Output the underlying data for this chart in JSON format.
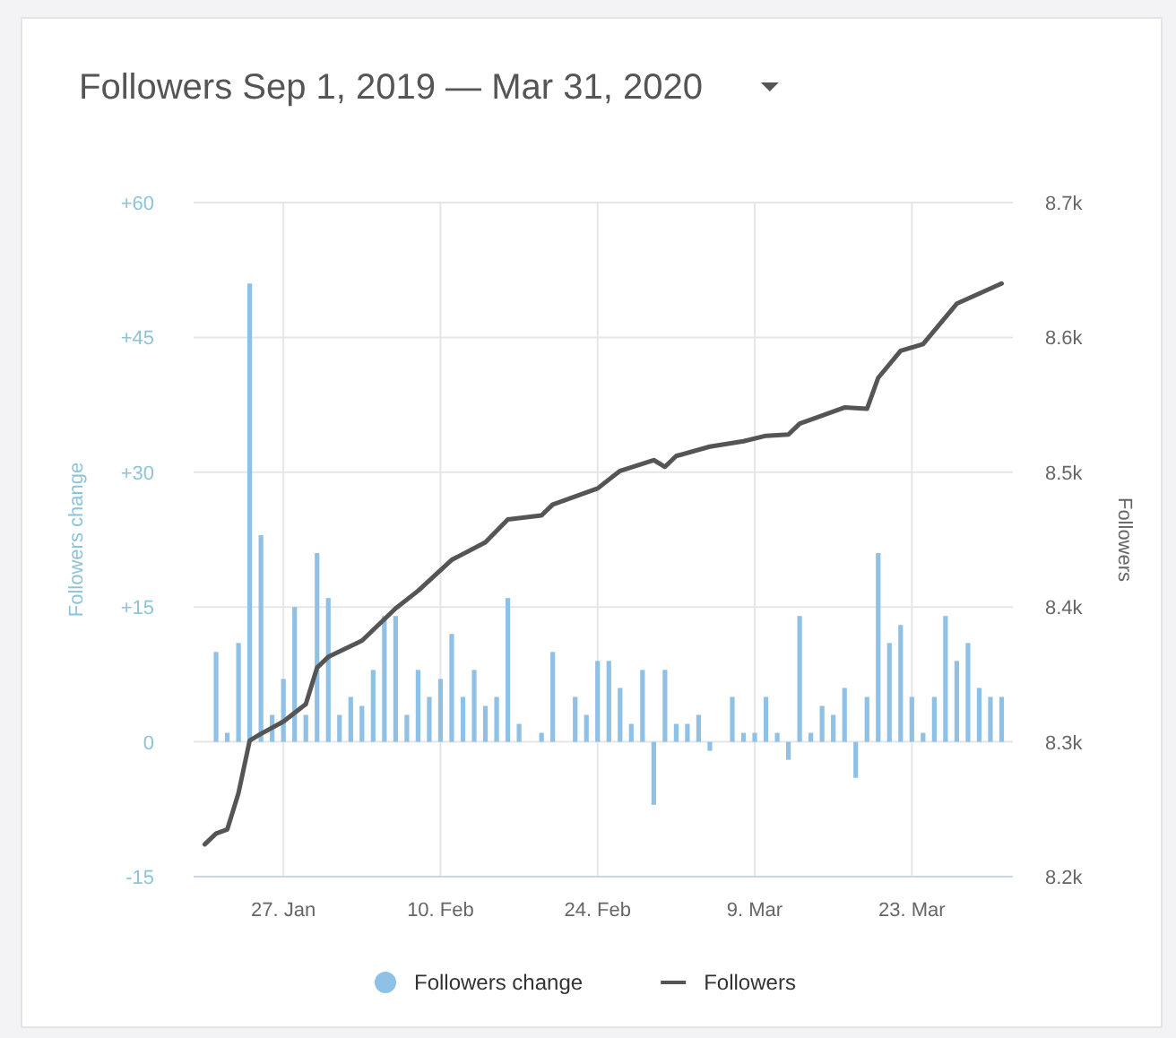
{
  "chart_data": {
    "type": "bar",
    "title": "Followers Sep 1, 2019 — Mar 31, 2020",
    "ylabel": "Followers change",
    "y2label": "Followers",
    "xlim": [
      "2020-01-19",
      "2020-04-01"
    ],
    "xticks": [
      {
        "value": "2020-01-27",
        "label": "27. Jan"
      },
      {
        "value": "2020-02-10",
        "label": "10. Feb"
      },
      {
        "value": "2020-02-24",
        "label": "24. Feb"
      },
      {
        "value": "2020-03-09",
        "label": "9. Mar"
      },
      {
        "value": "2020-03-23",
        "label": "23. Mar"
      }
    ],
    "ylim": [
      -15,
      60
    ],
    "yticks": [
      {
        "value": -15,
        "label": "-15"
      },
      0,
      {
        "value": 15,
        "label": "+15"
      },
      {
        "value": 30,
        "label": "+30"
      },
      {
        "value": 45,
        "label": "+45"
      },
      {
        "value": 60,
        "label": "+60"
      }
    ],
    "y2lim": [
      8200,
      8700
    ],
    "y2ticks": [
      {
        "value": 8200,
        "label": "8.2k"
      },
      {
        "value": 8300,
        "label": "8.3k"
      },
      {
        "value": 8400,
        "label": "8.4k"
      },
      {
        "value": 8500,
        "label": "8.5k"
      },
      {
        "value": 8600,
        "label": "8.6k"
      },
      {
        "value": 8700,
        "label": "8.7k"
      }
    ],
    "grid": true,
    "legend": "bottom",
    "series": [
      {
        "name": "Followers change",
        "color": "#8fc0e6",
        "x": [
          "2020-01-21",
          "2020-01-22",
          "2020-01-23",
          "2020-01-24",
          "2020-01-25",
          "2020-01-26",
          "2020-01-27",
          "2020-01-28",
          "2020-01-29",
          "2020-01-30",
          "2020-01-31",
          "2020-02-01",
          "2020-02-02",
          "2020-02-03",
          "2020-02-04",
          "2020-02-05",
          "2020-02-06",
          "2020-02-07",
          "2020-02-08",
          "2020-02-09",
          "2020-02-10",
          "2020-02-11",
          "2020-02-12",
          "2020-02-13",
          "2020-02-14",
          "2020-02-15",
          "2020-02-16",
          "2020-02-17",
          "2020-02-18",
          "2020-02-19",
          "2020-02-20",
          "2020-02-21",
          "2020-02-22",
          "2020-02-23",
          "2020-02-24",
          "2020-02-25",
          "2020-02-26",
          "2020-02-27",
          "2020-02-28",
          "2020-02-29",
          "2020-03-01",
          "2020-03-02",
          "2020-03-03",
          "2020-03-04",
          "2020-03-05",
          "2020-03-06",
          "2020-03-07",
          "2020-03-08",
          "2020-03-09",
          "2020-03-10",
          "2020-03-11",
          "2020-03-12",
          "2020-03-13",
          "2020-03-14",
          "2020-03-15",
          "2020-03-16",
          "2020-03-17",
          "2020-03-18",
          "2020-03-19",
          "2020-03-20",
          "2020-03-21",
          "2020-03-22",
          "2020-03-23",
          "2020-03-24",
          "2020-03-25",
          "2020-03-26",
          "2020-03-27",
          "2020-03-28",
          "2020-03-29",
          "2020-03-30",
          "2020-03-31"
        ],
        "values": [
          10,
          1,
          11,
          51,
          23,
          3,
          7,
          15,
          3,
          21,
          16,
          3,
          5,
          4,
          8,
          14,
          14,
          3,
          8,
          5,
          7,
          12,
          5,
          8,
          4,
          5,
          16,
          2,
          0,
          1,
          10,
          0,
          5,
          3,
          9,
          9,
          6,
          2,
          8,
          -7,
          8,
          2,
          2,
          3,
          -1,
          0,
          5,
          1,
          1,
          5,
          1,
          -2,
          14,
          1,
          4,
          3,
          6,
          -4,
          5,
          21,
          11,
          13,
          5,
          1,
          5,
          14,
          9,
          11,
          6,
          5,
          5
        ]
      },
      {
        "name": "Followers",
        "type": "line",
        "axis": "y2",
        "color": "#555555",
        "x": [
          "2020-01-20",
          "2020-01-21",
          "2020-01-22",
          "2020-01-23",
          "2020-01-24",
          "2020-01-25",
          "2020-01-27",
          "2020-01-29",
          "2020-01-30",
          "2020-01-31",
          "2020-02-03",
          "2020-02-06",
          "2020-02-08",
          "2020-02-11",
          "2020-02-14",
          "2020-02-16",
          "2020-02-19",
          "2020-02-20",
          "2020-02-24",
          "2020-02-26",
          "2020-02-29",
          "2020-03-01",
          "2020-03-02",
          "2020-03-05",
          "2020-03-08",
          "2020-03-10",
          "2020-03-12",
          "2020-03-13",
          "2020-03-17",
          "2020-03-19",
          "2020-03-20",
          "2020-03-22",
          "2020-03-24",
          "2020-03-27",
          "2020-03-31"
        ],
        "values": [
          8224,
          8232,
          8235,
          8262,
          8301,
          8306,
          8315,
          8328,
          8355,
          8363,
          8375,
          8399,
          8412,
          8435,
          8448,
          8465,
          8468,
          8476,
          8488,
          8501,
          8509,
          8504,
          8512,
          8519,
          8523,
          8527,
          8528,
          8536,
          8548,
          8547,
          8570,
          8590,
          8595,
          8625,
          8640
        ]
      }
    ]
  }
}
